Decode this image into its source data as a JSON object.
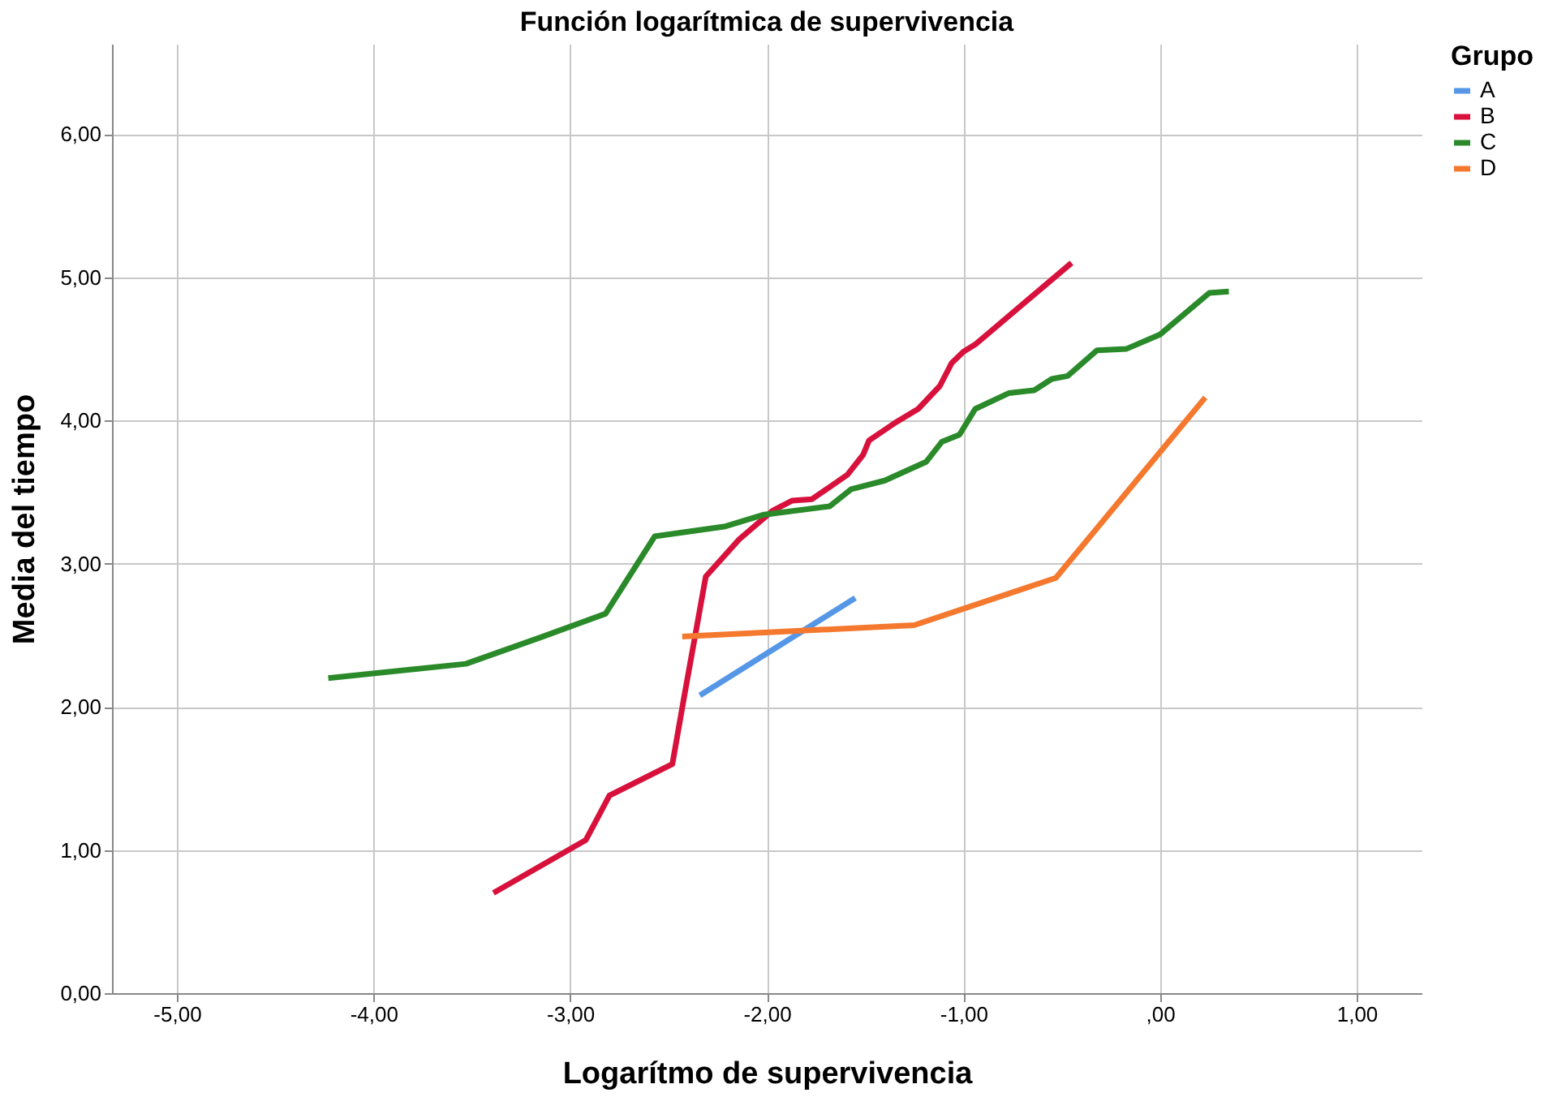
{
  "chart_data": {
    "type": "line",
    "title": "Función logarítmica de supervivencia",
    "xlabel": "Logarítmo de supervivencia",
    "ylabel": "Media del tiempo",
    "legend_title": "Grupo",
    "legend": "right",
    "grid": true,
    "marker": "none",
    "line_style": "solid",
    "xlim": [
      -5.33,
      1.33
    ],
    "ylim": [
      0,
      6.63
    ],
    "xticks": [
      {
        "value": -5,
        "label": "-5,00"
      },
      {
        "value": -4,
        "label": "-4,00"
      },
      {
        "value": -3,
        "label": "-3,00"
      },
      {
        "value": -2,
        "label": "-2,00"
      },
      {
        "value": -1,
        "label": "-1,00"
      },
      {
        "value": 0,
        "label": ",00"
      },
      {
        "value": 1,
        "label": "1,00"
      }
    ],
    "yticks": [
      {
        "value": 0,
        "label": "0,00"
      },
      {
        "value": 1,
        "label": "1,00"
      },
      {
        "value": 2,
        "label": "2,00"
      },
      {
        "value": 3,
        "label": "3,00"
      },
      {
        "value": 4,
        "label": "4,00"
      },
      {
        "value": 5,
        "label": "5,00"
      },
      {
        "value": 6,
        "label": "6,00"
      }
    ],
    "series": [
      {
        "name": "A",
        "color": "#5596e6",
        "x": [
          -2.34,
          -1.55
        ],
        "values": [
          2.08,
          2.76
        ]
      },
      {
        "name": "B",
        "color": "#d8113c",
        "x": [
          -3.39,
          -2.92,
          -2.8,
          -2.48,
          -2.42,
          -2.31,
          -2.14,
          -1.97,
          -1.87,
          -1.77,
          -1.59,
          -1.51,
          -1.48,
          -1.34,
          -1.23,
          -1.12,
          -1.06,
          -1.0,
          -0.94,
          -0.45
        ],
        "values": [
          0.7,
          1.07,
          1.38,
          1.6,
          2.07,
          2.91,
          3.17,
          3.37,
          3.44,
          3.45,
          3.62,
          3.76,
          3.86,
          3.99,
          4.08,
          4.24,
          4.4,
          4.48,
          4.53,
          5.1
        ]
      },
      {
        "name": "C",
        "color": "#2a8a2a",
        "x": [
          -4.23,
          -3.53,
          -3.14,
          -2.82,
          -2.57,
          -2.21,
          -2.02,
          -1.68,
          -1.57,
          -1.4,
          -1.19,
          -1.11,
          -1.02,
          -0.94,
          -0.77,
          -0.64,
          -0.55,
          -0.47,
          -0.32,
          -0.17,
          0.0,
          0.25,
          0.35
        ],
        "values": [
          2.2,
          2.3,
          2.49,
          2.65,
          3.19,
          3.26,
          3.34,
          3.4,
          3.52,
          3.58,
          3.71,
          3.85,
          3.9,
          4.08,
          4.19,
          4.21,
          4.29,
          4.31,
          4.49,
          4.5,
          4.6,
          4.89,
          4.9
        ]
      },
      {
        "name": "D",
        "color": "#f5782f",
        "x": [
          -2.43,
          -1.25,
          -0.53,
          0.23
        ],
        "values": [
          2.49,
          2.57,
          2.9,
          4.16
        ]
      }
    ]
  }
}
